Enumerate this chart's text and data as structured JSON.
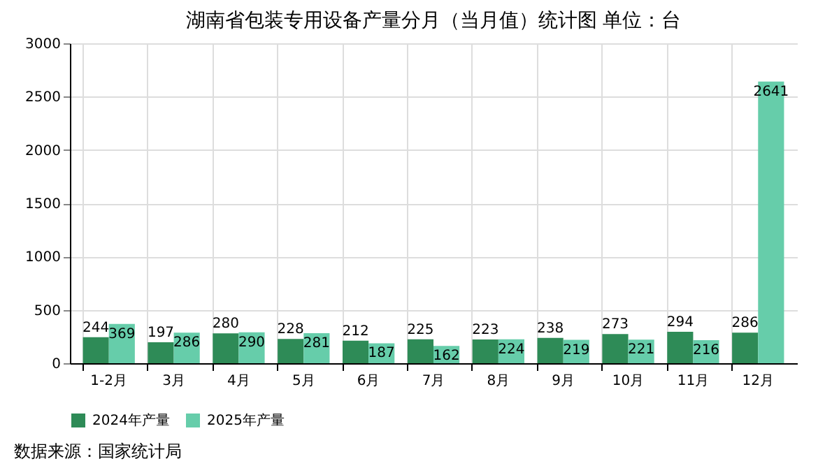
{
  "chart_data": {
    "type": "bar",
    "title": "湖南省包装专用设备产量分月（当月值）统计图 单位：台",
    "categories": [
      "1-2月",
      "3月",
      "4月",
      "5月",
      "6月",
      "7月",
      "8月",
      "9月",
      "10月",
      "11月",
      "12月"
    ],
    "series": [
      {
        "name": "2024年产量",
        "color": "#2e8b57",
        "values": [
          244,
          197,
          280,
          228,
          212,
          225,
          223,
          238,
          273,
          294,
          286
        ]
      },
      {
        "name": "2025年产量",
        "color": "#66cdaa",
        "values": [
          369,
          286,
          290,
          281,
          187,
          162,
          224,
          219,
          221,
          216,
          2641
        ]
      }
    ],
    "ylim": [
      0,
      3000
    ],
    "yticks": [
      0,
      500,
      1000,
      1500,
      2000,
      2500,
      3000
    ],
    "grid": true,
    "legend": "bottom",
    "data_labels": true,
    "annotations": [
      "数据来源：国家统计局"
    ]
  }
}
